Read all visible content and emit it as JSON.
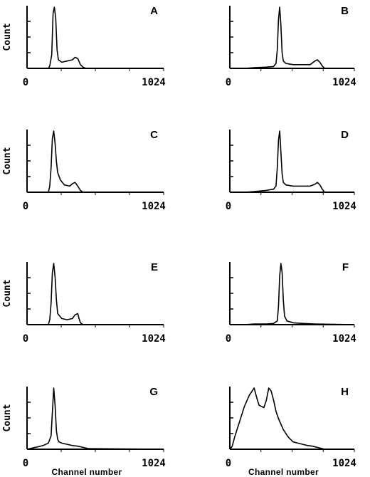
{
  "figure": {
    "ylabel": "Count",
    "xlabel": "Channel number"
  },
  "chart_data": [
    {
      "type": "line",
      "panel": "A",
      "ylabel": "Count",
      "xlabel": "",
      "xlim": [
        0,
        1024
      ],
      "ticks": [
        "0",
        "1024"
      ],
      "x": [
        0,
        160,
        170,
        185,
        195,
        205,
        215,
        225,
        235,
        260,
        300,
        340,
        360,
        380,
        400,
        420,
        440,
        1024
      ],
      "y": [
        0,
        0,
        4,
        22,
        90,
        100,
        82,
        30,
        14,
        10,
        12,
        14,
        18,
        16,
        6,
        2,
        0,
        0
      ]
    },
    {
      "type": "line",
      "panel": "B",
      "ylabel": "",
      "xlabel": "",
      "xlim": [
        0,
        1024
      ],
      "ticks": [
        "0",
        "1024"
      ],
      "x": [
        0,
        120,
        200,
        300,
        360,
        380,
        390,
        400,
        410,
        420,
        430,
        440,
        460,
        520,
        600,
        660,
        700,
        720,
        740,
        760,
        780,
        1024
      ],
      "y": [
        0,
        0,
        1,
        2,
        3,
        8,
        30,
        80,
        100,
        70,
        25,
        12,
        8,
        6,
        6,
        6,
        12,
        14,
        10,
        4,
        0,
        0
      ]
    },
    {
      "type": "line",
      "panel": "C",
      "ylabel": "Count",
      "xlabel": "",
      "xlim": [
        0,
        1024
      ],
      "ticks": [
        "0",
        "1024"
      ],
      "x": [
        0,
        160,
        170,
        180,
        190,
        200,
        210,
        220,
        230,
        250,
        280,
        320,
        340,
        360,
        380,
        400,
        420,
        1024
      ],
      "y": [
        0,
        0,
        10,
        40,
        88,
        100,
        80,
        50,
        32,
        20,
        12,
        10,
        14,
        16,
        10,
        3,
        0,
        0
      ]
    },
    {
      "type": "line",
      "panel": "D",
      "ylabel": "",
      "xlabel": "",
      "xlim": [
        0,
        1024
      ],
      "ticks": [
        "0",
        "1024"
      ],
      "x": [
        0,
        120,
        200,
        300,
        360,
        380,
        390,
        400,
        410,
        420,
        430,
        440,
        460,
        520,
        600,
        660,
        700,
        720,
        740,
        760,
        780,
        1024
      ],
      "y": [
        0,
        0,
        1,
        3,
        5,
        10,
        40,
        85,
        100,
        65,
        30,
        16,
        12,
        10,
        10,
        10,
        13,
        16,
        12,
        5,
        0,
        0
      ]
    },
    {
      "type": "line",
      "panel": "E",
      "ylabel": "Count",
      "xlabel": "",
      "xlim": [
        0,
        1024
      ],
      "ticks": [
        "0",
        "1024"
      ],
      "x": [
        0,
        160,
        170,
        180,
        190,
        200,
        210,
        220,
        230,
        260,
        300,
        340,
        360,
        380,
        390,
        400,
        420,
        1024
      ],
      "y": [
        0,
        0,
        8,
        35,
        85,
        100,
        78,
        40,
        18,
        10,
        8,
        10,
        16,
        18,
        10,
        3,
        0,
        0
      ]
    },
    {
      "type": "line",
      "panel": "F",
      "ylabel": "",
      "xlabel": "",
      "xlim": [
        0,
        1024
      ],
      "ticks": [
        "0",
        "1024"
      ],
      "x": [
        0,
        120,
        200,
        300,
        360,
        390,
        400,
        410,
        420,
        430,
        440,
        450,
        470,
        520,
        600,
        700,
        1024
      ],
      "y": [
        0,
        0,
        1,
        1,
        2,
        6,
        30,
        80,
        100,
        85,
        40,
        14,
        6,
        3,
        2,
        1,
        0
      ]
    },
    {
      "type": "line",
      "panel": "G",
      "ylabel": "Count",
      "xlabel": "Channel number",
      "xlim": [
        0,
        1024
      ],
      "ticks": [
        "0",
        "1024"
      ],
      "x": [
        0,
        40,
        80,
        120,
        160,
        180,
        190,
        200,
        210,
        220,
        230,
        240,
        260,
        300,
        340,
        380,
        420,
        460,
        1024
      ],
      "y": [
        0,
        2,
        4,
        6,
        10,
        22,
        60,
        100,
        72,
        30,
        16,
        12,
        10,
        8,
        6,
        5,
        3,
        1,
        0
      ]
    },
    {
      "type": "line",
      "panel": "H",
      "ylabel": "",
      "xlabel": "Channel number",
      "xlim": [
        0,
        1024
      ],
      "ticks": [
        "0",
        "1024"
      ],
      "x": [
        0,
        20,
        40,
        80,
        120,
        160,
        200,
        220,
        240,
        260,
        280,
        300,
        320,
        340,
        360,
        380,
        400,
        440,
        480,
        520,
        560,
        600,
        640,
        680,
        720,
        780,
        1024
      ],
      "y": [
        0,
        5,
        20,
        45,
        70,
        88,
        100,
        85,
        72,
        70,
        68,
        80,
        100,
        95,
        80,
        62,
        50,
        32,
        20,
        12,
        10,
        8,
        6,
        5,
        3,
        0,
        0
      ]
    }
  ]
}
